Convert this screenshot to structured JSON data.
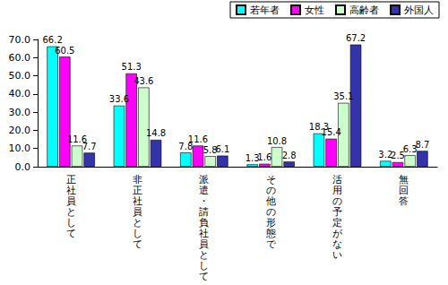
{
  "chart_data": {
    "type": "bar",
    "categories": [
      "正社員として",
      "非正社員として",
      "派遣・請負社員として",
      "その他の形態で",
      "活用の予定がない",
      "無回答"
    ],
    "series": [
      {
        "name": "若年者",
        "color": "#00ffff",
        "values": [
          66.2,
          33.6,
          7.8,
          1.3,
          18.3,
          3.2
        ]
      },
      {
        "name": "女性",
        "color": "#ff00ff",
        "values": [
          60.5,
          51.3,
          11.6,
          1.6,
          15.4,
          2.5
        ]
      },
      {
        "name": "高齢者",
        "color": "#ccffcc",
        "values": [
          11.6,
          43.6,
          5.8,
          10.8,
          35.1,
          6.3
        ]
      },
      {
        "name": "外国人",
        "color": "#3333aa",
        "values": [
          7.7,
          14.8,
          6.1,
          2.8,
          67.2,
          8.7
        ]
      }
    ],
    "ylim": [
      0,
      70
    ],
    "yticks": [
      {
        "value": 0,
        "label": "0.0"
      },
      {
        "value": 10,
        "label": "10.0"
      },
      {
        "value": 20,
        "label": "20.0"
      },
      {
        "value": 30,
        "label": "30.0"
      },
      {
        "value": 40,
        "label": "40.0"
      },
      {
        "value": 50,
        "label": "50.0"
      },
      {
        "value": 60,
        "label": "60.0"
      },
      {
        "value": 70,
        "label": "70.0"
      }
    ],
    "grid": false,
    "legend": "top-right",
    "data_labels": true
  }
}
